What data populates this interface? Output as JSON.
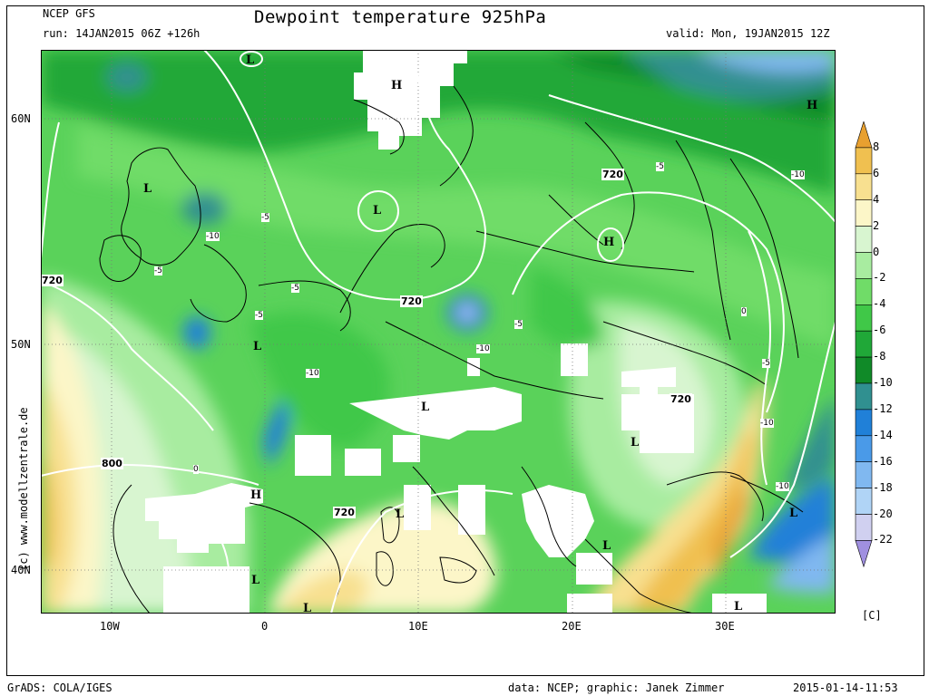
{
  "header": {
    "model": "NCEP GFS",
    "run": "run: 14JAN2015 06Z +126h",
    "title": "Dewpoint temperature 925hPa",
    "valid": "valid: Mon, 19JAN2015 12Z"
  },
  "credit": "(c) www.modellzentrale.de",
  "footer": {
    "left": "GrADS: COLA/IGES",
    "center": "data: NCEP; graphic: Janek Zimmer",
    "right": "2015-01-14-11:53"
  },
  "axes": {
    "lat_labels": [
      "60N",
      "50N",
      "40N"
    ],
    "lon_labels": [
      "10W",
      "0",
      "10E",
      "20E",
      "30E"
    ]
  },
  "legend": {
    "unit": "[C]",
    "levels": [
      "8",
      "6",
      "4",
      "2",
      "0",
      "-2",
      "-4",
      "-6",
      "-8",
      "-10",
      "-12",
      "-14",
      "-16",
      "-18",
      "-20",
      "-22"
    ],
    "colors": [
      "#e8a030",
      "#f0c050",
      "#f8e090",
      "#fcf6c8",
      "#d8f5d0",
      "#a8eca0",
      "#70dc68",
      "#40c848",
      "#20a838",
      "#108a28",
      "#309090",
      "#2080d8",
      "#4a9ae8",
      "#80b8f0",
      "#b0d4f6",
      "#d0d0f0",
      "#a090e0"
    ]
  },
  "map_labels": {
    "pressure_centers": [
      "L",
      "H",
      "H",
      "L",
      "L",
      "H",
      "L",
      "L",
      "L",
      "H",
      "L",
      "L",
      "L",
      "L",
      "L",
      "L"
    ],
    "contour_values": [
      "720",
      "720",
      "720",
      "720",
      "720",
      "800"
    ],
    "dewpoint_values": [
      "-5",
      "-5",
      "-5",
      "-5",
      "-5",
      "-5",
      "-5",
      "-10",
      "-10",
      "-10",
      "-10",
      "-10",
      "-10",
      "0",
      "0"
    ]
  }
}
